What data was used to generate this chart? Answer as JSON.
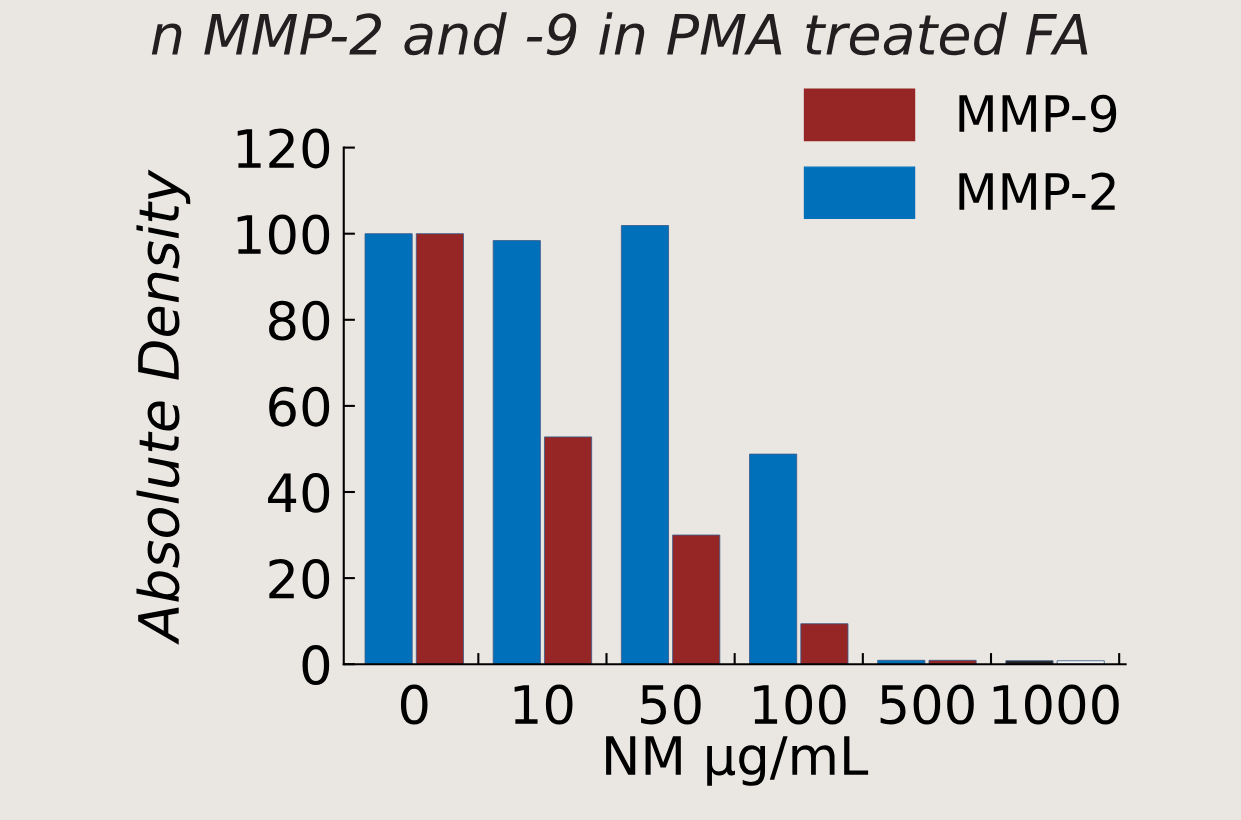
{
  "chart_data": {
    "type": "bar",
    "title": "n MMP-2 and -9 in PMA treated FA",
    "categories": [
      "0",
      "10",
      "50",
      "100",
      "500",
      "1000"
    ],
    "series": [
      {
        "name": "MMP-2",
        "color": "#0070bb",
        "colors": [
          "#0070bb",
          "#0070bb",
          "#0070bb",
          "#0070bb",
          "#0070bb",
          "#231f20"
        ],
        "values": [
          100,
          98.4,
          101.9,
          48.8,
          0.9,
          0.8
        ]
      },
      {
        "name": "MMP-9",
        "color": "#962625",
        "colors": [
          "#962625",
          "#962625",
          "#962625",
          "#962625",
          "#962625",
          "#f4f4f4"
        ],
        "values": [
          100,
          52.8,
          30,
          9.4,
          0.9,
          0.8
        ]
      }
    ],
    "xlabel": "NM µg/mL",
    "ylabel": "Absolute Density",
    "ylim": [
      0,
      120
    ],
    "yticks": [
      0,
      20,
      40,
      60,
      80,
      100,
      120
    ],
    "grid": false,
    "legend": "top right"
  }
}
